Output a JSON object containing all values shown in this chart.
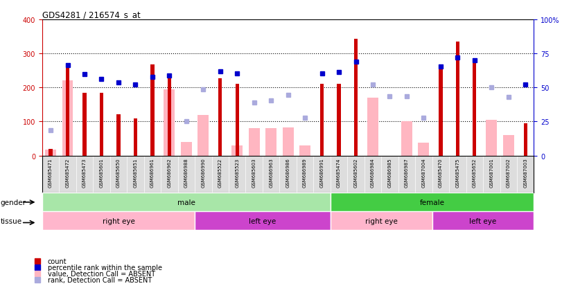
{
  "title": "GDS4281 / 216574_s_at",
  "samples": [
    "GSM685471",
    "GSM685472",
    "GSM685473",
    "GSM685601",
    "GSM685650",
    "GSM685651",
    "GSM686961",
    "GSM686962",
    "GSM686988",
    "GSM686990",
    "GSM685522",
    "GSM685523",
    "GSM685603",
    "GSM686963",
    "GSM686986",
    "GSM686989",
    "GSM686991",
    "GSM685474",
    "GSM685602",
    "GSM686984",
    "GSM686985",
    "GSM686987",
    "GSM687004",
    "GSM685470",
    "GSM685475",
    "GSM685652",
    "GSM687001",
    "GSM687002",
    "GSM687003"
  ],
  "count_values": [
    20,
    258,
    185,
    185,
    122,
    110,
    268,
    228,
    0,
    0,
    228,
    210,
    0,
    0,
    0,
    0,
    210,
    210,
    342,
    0,
    0,
    0,
    0,
    262,
    335,
    282,
    0,
    0,
    95
  ],
  "absent_value_values": [
    18,
    220,
    0,
    0,
    0,
    0,
    0,
    195,
    40,
    120,
    0,
    30,
    80,
    80,
    82,
    30,
    0,
    0,
    0,
    170,
    0,
    100,
    38,
    0,
    0,
    0,
    105,
    60,
    0
  ],
  "percentile_rank": [
    null,
    265,
    240,
    225,
    215,
    208,
    232,
    236,
    null,
    null,
    248,
    242,
    null,
    null,
    null,
    null,
    242,
    245,
    275,
    null,
    null,
    null,
    null,
    262,
    288,
    280,
    null,
    null,
    208
  ],
  "percentile_rank_absent": [
    75,
    null,
    null,
    null,
    null,
    null,
    null,
    null,
    100,
    195,
    null,
    null,
    155,
    162,
    178,
    112,
    null,
    null,
    null,
    208,
    175,
    175,
    112,
    null,
    null,
    null,
    200,
    172,
    null
  ],
  "gender_groups": [
    {
      "label": "male",
      "start": 0,
      "end": 17,
      "color": "#a8e6a8"
    },
    {
      "label": "female",
      "start": 17,
      "end": 29,
      "color": "#44cc44"
    }
  ],
  "tissue_groups": [
    {
      "label": "right eye",
      "start": 0,
      "end": 9,
      "color": "#ffb6cc"
    },
    {
      "label": "left eye",
      "start": 9,
      "end": 17,
      "color": "#cc44cc"
    },
    {
      "label": "right eye",
      "start": 17,
      "end": 23,
      "color": "#ffb6cc"
    },
    {
      "label": "left eye",
      "start": 23,
      "end": 29,
      "color": "#cc44cc"
    }
  ],
  "ylim": [
    0,
    400
  ],
  "y2lim": [
    0,
    100
  ],
  "yticks_left": [
    0,
    100,
    200,
    300,
    400
  ],
  "yticks_right": [
    0,
    25,
    50,
    75,
    100
  ],
  "color_count": "#CC0000",
  "color_rank": "#0000CC",
  "color_absent_value": "#FFB6C1",
  "color_absent_rank": "#AAAADD",
  "grid_color": "black",
  "xtick_bg": "#DDDDDD"
}
